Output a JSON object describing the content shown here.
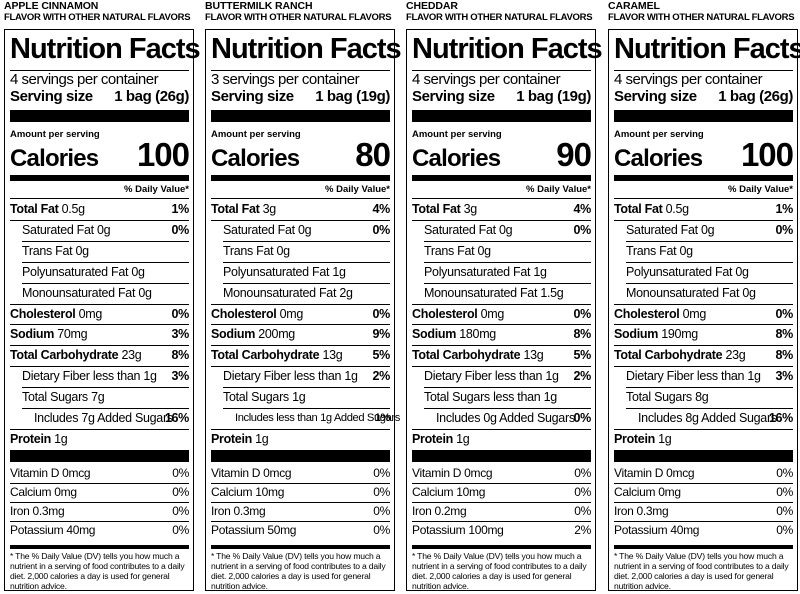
{
  "panels": [
    {
      "flavor": "APPLE CINNAMON",
      "subtitle": "FLAVOR WITH OTHER NATURAL FLAVORS",
      "title": "Nutrition Facts",
      "servings": "4 servings per container",
      "serving_size_label": "Serving size",
      "serving_size_value": "1 bag (26g)",
      "amount_per_serving": "Amount per serving",
      "calories_label": "Calories",
      "calories": "100",
      "daily_value_header": "% Daily Value*",
      "nutrients": [
        {
          "name": "Total Fat",
          "amount": "0.5g",
          "dv": "1%",
          "bold": true,
          "indent": 0
        },
        {
          "name": "Saturated Fat",
          "amount": "0g",
          "dv": "0%",
          "bold": false,
          "indent": 1
        },
        {
          "name": "Trans Fat",
          "amount": "0g",
          "dv": "",
          "bold": false,
          "indent": 1
        },
        {
          "name": "Polyunsaturated Fat",
          "amount": "0g",
          "dv": "",
          "bold": false,
          "indent": 1
        },
        {
          "name": "Monounsaturated Fat",
          "amount": "0g",
          "dv": "",
          "bold": false,
          "indent": 1
        },
        {
          "name": "Cholesterol",
          "amount": "0mg",
          "dv": "0%",
          "bold": true,
          "indent": 0
        },
        {
          "name": "Sodium",
          "amount": "70mg",
          "dv": "3%",
          "bold": true,
          "indent": 0
        },
        {
          "name": "Total Carbohydrate",
          "amount": "23g",
          "dv": "8%",
          "bold": true,
          "indent": 0
        },
        {
          "name": "Dietary Fiber",
          "amount": "less than 1g",
          "dv": "3%",
          "bold": false,
          "indent": 1
        },
        {
          "name": "Total Sugars",
          "amount": "7g",
          "dv": "",
          "bold": false,
          "indent": 1
        },
        {
          "name": "Includes",
          "amount": "7g Added Sugars",
          "dv": "16%",
          "bold": false,
          "indent": 2
        },
        {
          "name": "Protein",
          "amount": "1g",
          "dv": "",
          "bold": true,
          "indent": 0
        }
      ],
      "minerals": [
        {
          "text": "Vitamin D 0mcg",
          "dv": "0%"
        },
        {
          "text": "Calcium 0mg",
          "dv": "0%"
        },
        {
          "text": "Iron 0.3mg",
          "dv": "0%"
        },
        {
          "text": "Potassium 40mg",
          "dv": "0%"
        }
      ],
      "footnote": "* The % Daily Value (DV) tells you how much a nutrient in a serving of food contributes to a daily diet. 2,000 calories a day is used for general nutrition advice."
    },
    {
      "flavor": "BUTTERMILK RANCH",
      "subtitle": "FLAVOR WITH OTHER NATURAL FLAVORS",
      "title": "Nutrition Facts",
      "servings": "3 servings per container",
      "serving_size_label": "Serving size",
      "serving_size_value": "1 bag (19g)",
      "amount_per_serving": "Amount per serving",
      "calories_label": "Calories",
      "calories": "80",
      "daily_value_header": "% Daily Value*",
      "nutrients": [
        {
          "name": "Total Fat",
          "amount": "3g",
          "dv": "4%",
          "bold": true,
          "indent": 0
        },
        {
          "name": "Saturated Fat",
          "amount": "0g",
          "dv": "0%",
          "bold": false,
          "indent": 1
        },
        {
          "name": "Trans Fat",
          "amount": "0g",
          "dv": "",
          "bold": false,
          "indent": 1
        },
        {
          "name": "Polyunsaturated Fat",
          "amount": "1g",
          "dv": "",
          "bold": false,
          "indent": 1
        },
        {
          "name": "Monounsaturated Fat",
          "amount": "2g",
          "dv": "",
          "bold": false,
          "indent": 1
        },
        {
          "name": "Cholesterol",
          "amount": "0mg",
          "dv": "0%",
          "bold": true,
          "indent": 0
        },
        {
          "name": "Sodium",
          "amount": "200mg",
          "dv": "9%",
          "bold": true,
          "indent": 0
        },
        {
          "name": "Total Carbohydrate",
          "amount": "13g",
          "dv": "5%",
          "bold": true,
          "indent": 0
        },
        {
          "name": "Dietary Fiber",
          "amount": "less than 1g",
          "dv": "2%",
          "bold": false,
          "indent": 1
        },
        {
          "name": "Total Sugars",
          "amount": "1g",
          "dv": "",
          "bold": false,
          "indent": 1
        },
        {
          "name": "Includes",
          "amount": "less than 1g Added Sugars",
          "dv": "1%",
          "bold": false,
          "indent": 2
        },
        {
          "name": "Protein",
          "amount": "1g",
          "dv": "",
          "bold": true,
          "indent": 0
        }
      ],
      "minerals": [
        {
          "text": "Vitamin D 0mcg",
          "dv": "0%"
        },
        {
          "text": "Calcium 10mg",
          "dv": "0%"
        },
        {
          "text": "Iron 0.3mg",
          "dv": "0%"
        },
        {
          "text": "Potassium 50mg",
          "dv": "0%"
        }
      ],
      "footnote": "* The % Daily Value (DV) tells you how much a nutrient in a serving of food contributes to a daily diet. 2,000 calories a day is used for general nutrition advice."
    },
    {
      "flavor": "CHEDDAR",
      "subtitle": "FLAVOR WITH OTHER NATURAL FLAVORS",
      "title": "Nutrition Facts",
      "servings": "4 servings per container",
      "serving_size_label": "Serving size",
      "serving_size_value": "1 bag (19g)",
      "amount_per_serving": "Amount per serving",
      "calories_label": "Calories",
      "calories": "90",
      "daily_value_header": "% Daily Value*",
      "nutrients": [
        {
          "name": "Total Fat",
          "amount": "3g",
          "dv": "4%",
          "bold": true,
          "indent": 0
        },
        {
          "name": "Saturated Fat",
          "amount": "0g",
          "dv": "0%",
          "bold": false,
          "indent": 1
        },
        {
          "name": "Trans Fat",
          "amount": "0g",
          "dv": "",
          "bold": false,
          "indent": 1
        },
        {
          "name": "Polyunsaturated Fat",
          "amount": "1g",
          "dv": "",
          "bold": false,
          "indent": 1
        },
        {
          "name": "Monounsaturated Fat",
          "amount": "1.5g",
          "dv": "",
          "bold": false,
          "indent": 1
        },
        {
          "name": "Cholesterol",
          "amount": "0mg",
          "dv": "0%",
          "bold": true,
          "indent": 0
        },
        {
          "name": "Sodium",
          "amount": "180mg",
          "dv": "8%",
          "bold": true,
          "indent": 0
        },
        {
          "name": "Total Carbohydrate",
          "amount": "13g",
          "dv": "5%",
          "bold": true,
          "indent": 0
        },
        {
          "name": "Dietary Fiber",
          "amount": "less than 1g",
          "dv": "2%",
          "bold": false,
          "indent": 1
        },
        {
          "name": "Total Sugars",
          "amount": "less than 1g",
          "dv": "",
          "bold": false,
          "indent": 1
        },
        {
          "name": "Includes",
          "amount": "0g Added Sugars",
          "dv": "0%",
          "bold": false,
          "indent": 2
        },
        {
          "name": "Protein",
          "amount": "1g",
          "dv": "",
          "bold": true,
          "indent": 0
        }
      ],
      "minerals": [
        {
          "text": "Vitamin D 0mcg",
          "dv": "0%"
        },
        {
          "text": "Calcium 10mg",
          "dv": "0%"
        },
        {
          "text": "Iron 0.2mg",
          "dv": "0%"
        },
        {
          "text": "Potassium 100mg",
          "dv": "2%"
        }
      ],
      "footnote": "* The % Daily Value (DV) tells you how much a nutrient in a serving of food contributes to a daily diet. 2,000 calories a day is used for general nutrition advice."
    },
    {
      "flavor": "CARAMEL",
      "subtitle": "FLAVOR WITH OTHER NATURAL FLAVORS",
      "title": "Nutrition Facts",
      "servings": "4 servings per container",
      "serving_size_label": "Serving size",
      "serving_size_value": "1 bag (26g)",
      "amount_per_serving": "Amount per serving",
      "calories_label": "Calories",
      "calories": "100",
      "daily_value_header": "% Daily Value*",
      "nutrients": [
        {
          "name": "Total Fat",
          "amount": "0.5g",
          "dv": "1%",
          "bold": true,
          "indent": 0
        },
        {
          "name": "Saturated Fat",
          "amount": "0g",
          "dv": "0%",
          "bold": false,
          "indent": 1
        },
        {
          "name": "Trans Fat",
          "amount": "0g",
          "dv": "",
          "bold": false,
          "indent": 1
        },
        {
          "name": "Polyunsaturated Fat",
          "amount": "0g",
          "dv": "",
          "bold": false,
          "indent": 1
        },
        {
          "name": "Monounsaturated Fat",
          "amount": "0g",
          "dv": "",
          "bold": false,
          "indent": 1
        },
        {
          "name": "Cholesterol",
          "amount": "0mg",
          "dv": "0%",
          "bold": true,
          "indent": 0
        },
        {
          "name": "Sodium",
          "amount": "190mg",
          "dv": "8%",
          "bold": true,
          "indent": 0
        },
        {
          "name": "Total Carbohydrate",
          "amount": "23g",
          "dv": "8%",
          "bold": true,
          "indent": 0
        },
        {
          "name": "Dietary Fiber",
          "amount": "less than 1g",
          "dv": "3%",
          "bold": false,
          "indent": 1
        },
        {
          "name": "Total Sugars",
          "amount": "8g",
          "dv": "",
          "bold": false,
          "indent": 1
        },
        {
          "name": "Includes",
          "amount": "8g Added Sugars",
          "dv": "16%",
          "bold": false,
          "indent": 2
        },
        {
          "name": "Protein",
          "amount": "1g",
          "dv": "",
          "bold": true,
          "indent": 0
        }
      ],
      "minerals": [
        {
          "text": "Vitamin D 0mcg",
          "dv": "0%"
        },
        {
          "text": "Calcium 0mg",
          "dv": "0%"
        },
        {
          "text": "Iron 0.3mg",
          "dv": "0%"
        },
        {
          "text": "Potassium 40mg",
          "dv": "0%"
        }
      ],
      "footnote": "* The % Daily Value (DV) tells you how much a nutrient in a serving of food contributes to a daily diet. 2,000 calories a day is used for general nutrition advice."
    }
  ]
}
